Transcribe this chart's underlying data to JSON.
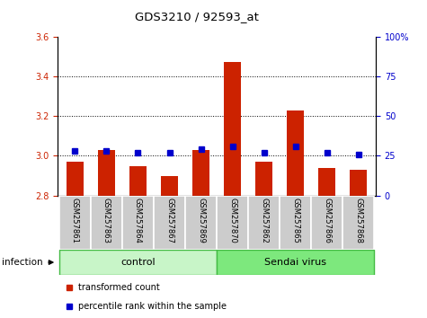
{
  "title": "GDS3210 / 92593_at",
  "samples": [
    "GSM257861",
    "GSM257863",
    "GSM257864",
    "GSM257867",
    "GSM257869",
    "GSM257870",
    "GSM257862",
    "GSM257865",
    "GSM257866",
    "GSM257868"
  ],
  "transformed_counts": [
    2.97,
    3.03,
    2.95,
    2.9,
    3.03,
    3.47,
    2.97,
    3.23,
    2.94,
    2.93
  ],
  "percentile_vals": [
    28,
    28,
    27,
    27,
    29,
    31,
    27,
    31,
    27,
    26
  ],
  "bar_color": "#cc2200",
  "dot_color": "#0000cc",
  "ylim_left": [
    2.8,
    3.6
  ],
  "yticks_left": [
    2.8,
    3.0,
    3.2,
    3.4,
    3.6
  ],
  "ylim_right": [
    0,
    100
  ],
  "yticks_right": [
    0,
    25,
    50,
    75,
    100
  ],
  "ytick_labels_right": [
    "0",
    "25",
    "50",
    "75",
    "100%"
  ],
  "left_tick_color": "#cc2200",
  "right_tick_color": "#0000cc",
  "grid_dotted_at": [
    3.0,
    3.2,
    3.4
  ],
  "n_control": 5,
  "n_sendai": 5,
  "control_color": "#c8f5c8",
  "sendai_color": "#7de87d",
  "group_border_color": "#44bb44",
  "sample_box_color": "#cccccc",
  "infection_label": "infection",
  "legend_items": [
    "transformed count",
    "percentile rank within the sample"
  ],
  "legend_colors": [
    "#cc2200",
    "#0000cc"
  ]
}
